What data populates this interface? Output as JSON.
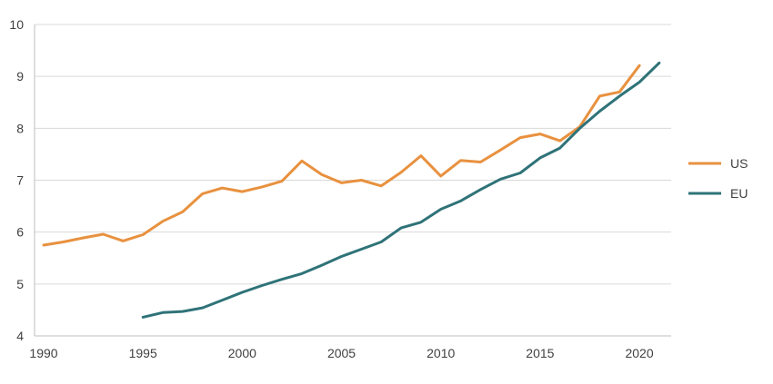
{
  "chart_data": {
    "type": "line",
    "title": "",
    "xlabel": "",
    "ylabel": "",
    "xlim": [
      1990,
      2021
    ],
    "ylim": [
      4,
      10
    ],
    "x_ticks": [
      "1990",
      "1995",
      "2000",
      "2005",
      "2010",
      "2015",
      "2020"
    ],
    "y_ticks": [
      "4",
      "5",
      "6",
      "7",
      "8",
      "9",
      "10"
    ],
    "grid": "horizontal",
    "legend": "right",
    "series": [
      {
        "name": "US",
        "color": "#e8913f",
        "x": [
          1990,
          1991,
          1992,
          1993,
          1994,
          1995,
          1996,
          1997,
          1998,
          1999,
          2000,
          2001,
          2002,
          2003,
          2004,
          2005,
          2006,
          2007,
          2008,
          2009,
          2010,
          2011,
          2012,
          2013,
          2014,
          2015,
          2016,
          2017,
          2018,
          2019,
          2020
        ],
        "y": [
          5.75,
          5.81,
          5.89,
          5.96,
          5.83,
          5.95,
          6.21,
          6.39,
          6.74,
          6.85,
          6.78,
          6.87,
          6.98,
          7.37,
          7.11,
          6.95,
          7.0,
          6.89,
          7.15,
          7.47,
          7.08,
          7.38,
          7.35,
          7.58,
          7.82,
          7.89,
          7.76,
          8.03,
          8.62,
          8.7,
          9.21
        ]
      },
      {
        "name": "EU",
        "color": "#2f7378",
        "x": [
          1995,
          1996,
          1997,
          1998,
          1999,
          2000,
          2001,
          2002,
          2003,
          2004,
          2005,
          2006,
          2007,
          2008,
          2009,
          2010,
          2011,
          2012,
          2013,
          2014,
          2015,
          2016,
          2017,
          2018,
          2019,
          2020,
          2021
        ],
        "y": [
          4.36,
          4.45,
          4.47,
          4.54,
          4.69,
          4.84,
          4.97,
          5.09,
          5.2,
          5.36,
          5.53,
          5.67,
          5.81,
          6.08,
          6.19,
          6.44,
          6.6,
          6.82,
          7.02,
          7.14,
          7.43,
          7.62,
          8.0,
          8.33,
          8.62,
          8.89,
          9.26
        ]
      }
    ]
  }
}
